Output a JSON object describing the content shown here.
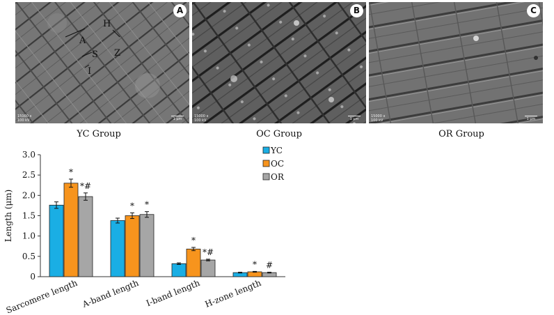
{
  "panels": [
    {
      "badge": "A",
      "caption": "YC Group",
      "mag": "15000 x",
      "kv": "100 kV",
      "scale": "1 μm",
      "annotations": {
        "a": "A",
        "h": "H",
        "s": "S",
        "z": "Z",
        "i": "I"
      }
    },
    {
      "badge": "B",
      "caption": "OC Group",
      "mag": "15000 x",
      "kv": "100 kV",
      "scale": "1 μm"
    },
    {
      "badge": "C",
      "caption": "OR Group",
      "mag": "15000 x",
      "kv": "100 kV",
      "scale": "1 μm"
    }
  ],
  "colors": {
    "YC": "#1aaee4",
    "OC": "#f7941d",
    "OR": "#a6a6a6"
  },
  "chart_data": {
    "type": "bar",
    "categories": [
      "Sarcomere length",
      "A-band length",
      "I-band length",
      "H-zone length"
    ],
    "series": [
      {
        "name": "YC",
        "values": [
          1.76,
          1.38,
          0.32,
          0.1
        ],
        "errors": [
          0.08,
          0.06,
          0.02,
          0.01
        ],
        "marks": [
          "",
          "",
          "",
          ""
        ]
      },
      {
        "name": "OC",
        "values": [
          2.3,
          1.5,
          0.68,
          0.12
        ],
        "errors": [
          0.1,
          0.07,
          0.04,
          0.01
        ],
        "marks": [
          "*",
          "*",
          "*",
          "*"
        ]
      },
      {
        "name": "OR",
        "values": [
          1.97,
          1.53,
          0.41,
          0.1
        ],
        "errors": [
          0.09,
          0.07,
          0.02,
          0.01
        ],
        "marks": [
          "*#",
          "*",
          "*#",
          "#"
        ]
      }
    ],
    "ylabel": "Length (μm)",
    "ylim": [
      0,
      3.0
    ],
    "yticks": [
      "0",
      "0.5",
      "1.0",
      "1.5",
      "2.0",
      "2.5",
      "3.0"
    ],
    "legend_position": "top-right"
  }
}
